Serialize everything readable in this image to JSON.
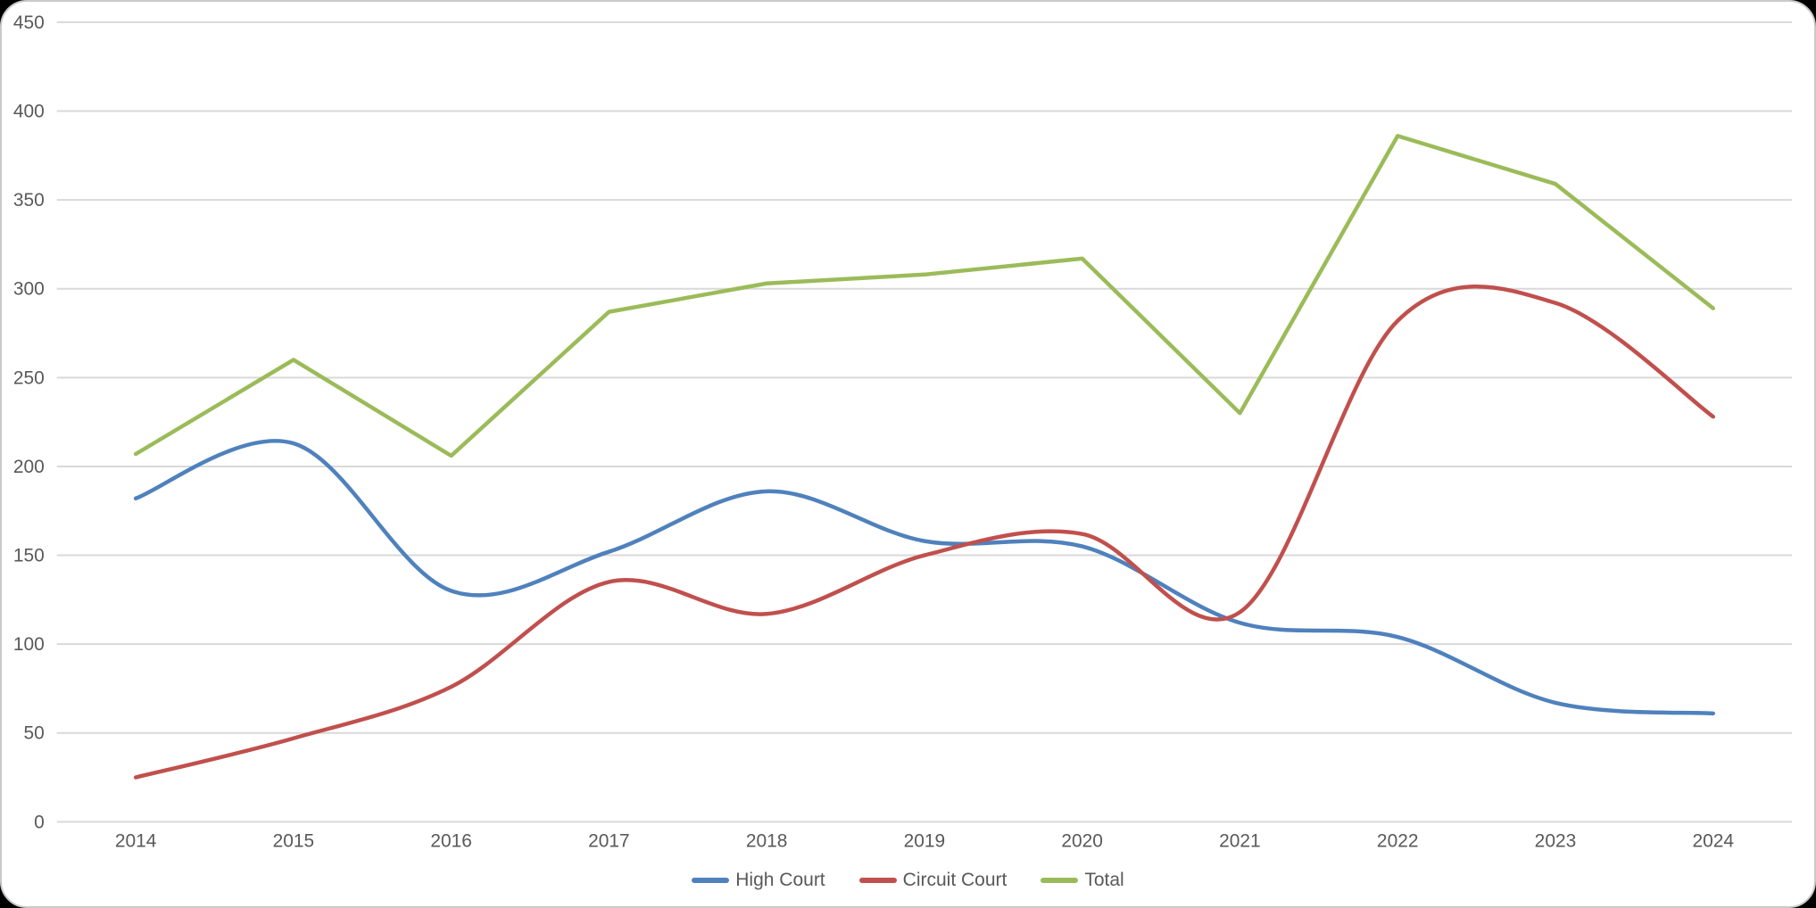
{
  "page": {
    "outer_background": "#000000",
    "card_background": "#ffffff",
    "card_border_color": "#c9c9c9",
    "gridline_color": "#d9d9d9",
    "axis_text_color": "#595959"
  },
  "chart_data": {
    "type": "line",
    "title": "",
    "xlabel": "",
    "ylabel": "",
    "categories": [
      "2014",
      "2015",
      "2016",
      "2017",
      "2018",
      "2019",
      "2020",
      "2021",
      "2022",
      "2023",
      "2024"
    ],
    "series": [
      {
        "name": "High Court",
        "color": "#4F81BD",
        "smooth": true,
        "values": [
          182,
          213,
          130,
          152,
          186,
          158,
          155,
          112,
          104,
          67,
          61
        ]
      },
      {
        "name": "Circuit Court",
        "color": "#C0504D",
        "smooth": true,
        "values": [
          25,
          47,
          76,
          135,
          117,
          150,
          162,
          118,
          282,
          292,
          228
        ]
      },
      {
        "name": "Total",
        "color": "#9BBB59",
        "smooth": false,
        "values": [
          207,
          260,
          206,
          287,
          303,
          308,
          317,
          230,
          386,
          359,
          289
        ]
      }
    ],
    "ylim": [
      0,
      450
    ],
    "y_ticks": [
      0,
      50,
      100,
      150,
      200,
      250,
      300,
      350,
      400,
      450
    ],
    "grid": "horizontal",
    "legend_position": "bottom-center"
  }
}
